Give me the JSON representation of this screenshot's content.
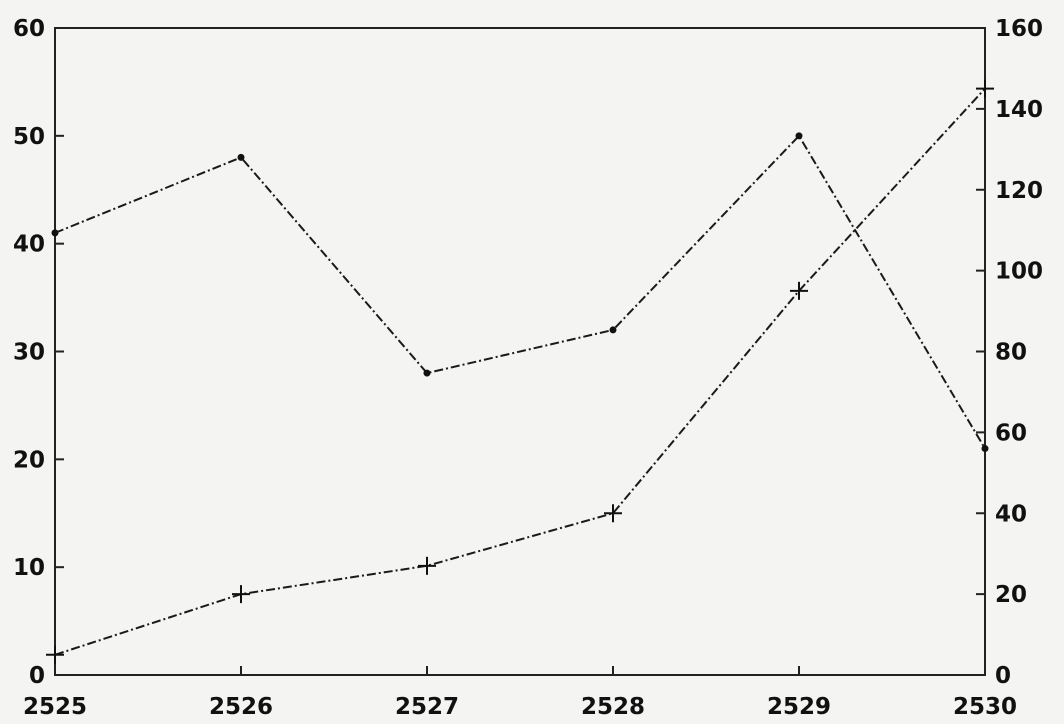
{
  "chart_data": {
    "type": "line",
    "title": "",
    "xlabel": "",
    "ylabel_left": "",
    "ylabel_right": "",
    "x": [
      2525,
      2526,
      2527,
      2528,
      2529,
      2530
    ],
    "x_ticks": [
      "2525",
      "2526",
      "2527",
      "2528",
      "2529",
      "2530"
    ],
    "y_left_ticks": [
      "0",
      "10",
      "20",
      "30",
      "40",
      "50",
      "60"
    ],
    "y_right_ticks": [
      "0",
      "20",
      "40",
      "60",
      "80",
      "100",
      "120",
      "140",
      "160"
    ],
    "xlim": [
      2525,
      2530
    ],
    "ylim_left": [
      0,
      60
    ],
    "ylim_right": [
      0,
      160
    ],
    "grid": false,
    "series": [
      {
        "axis": "left",
        "marker": "dot",
        "values": [
          41,
          48,
          28,
          32,
          50,
          21
        ]
      },
      {
        "axis": "right",
        "marker": "plus",
        "values": [
          5,
          20,
          27,
          40,
          95,
          145
        ]
      }
    ]
  }
}
